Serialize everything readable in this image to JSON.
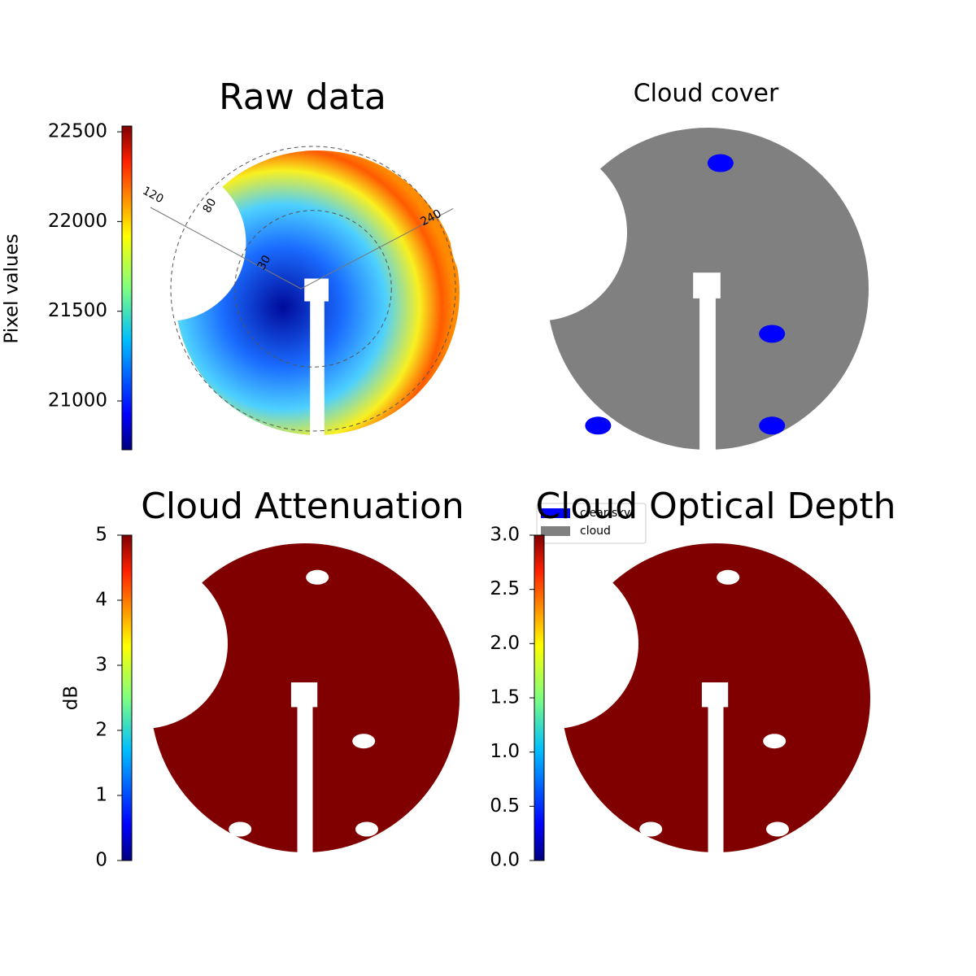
{
  "chart_data": [
    {
      "type": "image",
      "title": "Raw data",
      "colormap": "jet",
      "colorbar_label": "Pixel values",
      "ylim": [
        20728,
        22532
      ],
      "yticks": [
        21000,
        21500,
        22000,
        22500
      ],
      "annotations": [
        "120",
        "80",
        "30",
        "240"
      ]
    },
    {
      "type": "image",
      "title": "Cloud cover",
      "legend": "upper left",
      "series": [
        {
          "name": "clear sky",
          "color": "#0000ff"
        },
        {
          "name": "cloud",
          "color": "#808080"
        }
      ]
    },
    {
      "type": "image",
      "title": "Cloud Attenuation",
      "colormap": "jet",
      "colorbar_label": "dB",
      "color": "#800000",
      "ylim": [
        0,
        5
      ],
      "yticks": [
        0,
        1,
        2,
        3,
        4,
        5
      ]
    },
    {
      "type": "image",
      "title": "Cloud Optical Depth",
      "colormap": "jet",
      "color": "#800000",
      "ylim": [
        0,
        3
      ],
      "yticks": [
        {
          "value": 0,
          "label": "0.0"
        },
        {
          "value": 0.5,
          "label": "0.5"
        },
        {
          "value": 1,
          "label": "1.0"
        },
        {
          "value": 1.5,
          "label": "1.5"
        },
        {
          "value": 2,
          "label": "2.0"
        },
        {
          "value": 2.5,
          "label": "2.5"
        },
        {
          "value": 3,
          "label": "3.0"
        }
      ]
    }
  ]
}
